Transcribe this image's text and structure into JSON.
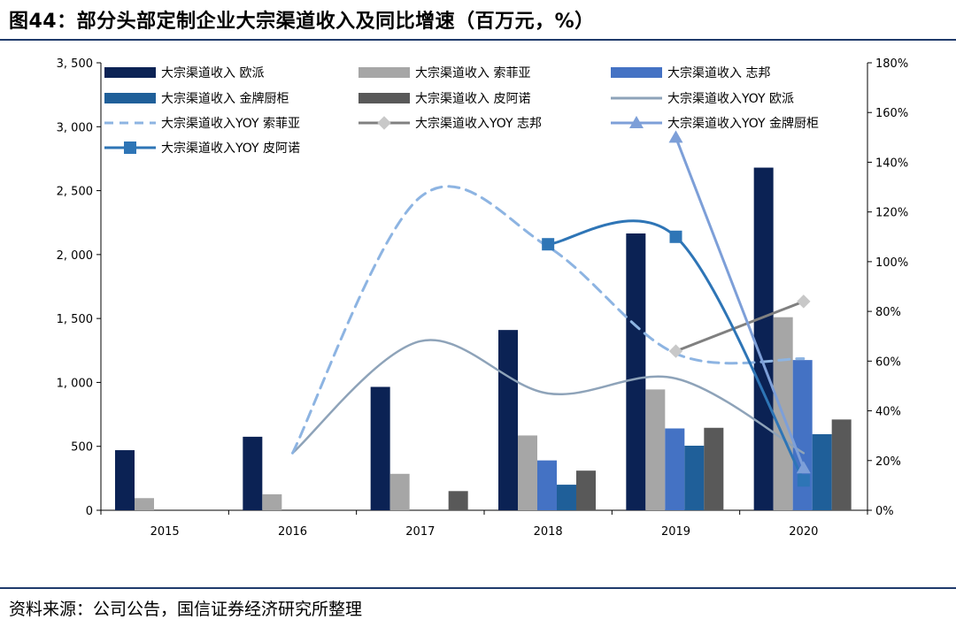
{
  "header": {
    "title": "图44：部分头部定制企业大宗渠道收入及同比增速（百万元，%）"
  },
  "footer": {
    "source": "资料来源：公司公告，国信证券经济研究所整理"
  },
  "colors": {
    "oppein_bar": "#0b2254",
    "sofia_bar": "#a6a6a6",
    "zbom_bar": "#4472c4",
    "goldenhome_bar": "#1f5f99",
    "piano_bar": "#595959",
    "oppein_yoy": "#8ea3b9",
    "sofia_yoy": "#8db4e2",
    "zbom_yoy": "#808080",
    "goldenhome_yoy": "#7d9fd8",
    "piano_yoy": "#2e75b6"
  },
  "chart_data": {
    "type": "bar",
    "title": "部分头部定制企业大宗渠道收入及同比增速（百万元，%）",
    "categories": [
      "2015",
      "2016",
      "2017",
      "2018",
      "2019",
      "2020"
    ],
    "ylim_left": [
      0,
      3500
    ],
    "yticks_left": [
      "0",
      "500",
      "1, 000",
      "1, 500",
      "2, 000",
      "2, 500",
      "3, 000",
      "3, 500"
    ],
    "ylim_right": [
      0,
      180
    ],
    "yticks_right": [
      "0%",
      "20%",
      "40%",
      "60%",
      "80%",
      "100%",
      "120%",
      "140%",
      "160%",
      "180%"
    ],
    "bar_series": [
      {
        "name": "大宗渠道收入 欧派",
        "values": [
          470,
          575,
          965,
          1410,
          2165,
          2680
        ]
      },
      {
        "name": "大宗渠道收入 索菲亚",
        "values": [
          95,
          125,
          285,
          585,
          945,
          1510
        ]
      },
      {
        "name": "大宗渠道收入 志邦",
        "values": [
          null,
          null,
          null,
          390,
          640,
          1175
        ]
      },
      {
        "name": "大宗渠道收入 金牌厨柜",
        "values": [
          null,
          null,
          null,
          200,
          505,
          595
        ]
      },
      {
        "name": "大宗渠道收入 皮阿诺",
        "values": [
          null,
          null,
          150,
          310,
          645,
          710
        ]
      }
    ],
    "line_series": [
      {
        "name": "大宗渠道收入YOY 欧派",
        "values": [
          null,
          23,
          68,
          47,
          53,
          23
        ]
      },
      {
        "name": "大宗渠道收入YOY 索菲亚",
        "values": [
          null,
          23,
          126,
          106,
          63,
          61
        ]
      },
      {
        "name": "大宗渠道收入YOY 志邦",
        "values": [
          null,
          null,
          null,
          null,
          64,
          84
        ]
      },
      {
        "name": "大宗渠道收入YOY 金牌厨柜",
        "values": [
          null,
          null,
          null,
          null,
          150,
          17
        ]
      },
      {
        "name": "大宗渠道收入YOY 皮阿诺",
        "values": [
          null,
          null,
          null,
          107,
          110,
          12
        ]
      }
    ],
    "legend": {
      "position": "top",
      "entries": [
        "大宗渠道收入 欧派",
        "大宗渠道收入 索菲亚",
        "大宗渠道收入 志邦",
        "大宗渠道收入 金牌厨柜",
        "大宗渠道收入 皮阿诺",
        "大宗渠道收入YOY 欧派",
        "大宗渠道收入YOY 索菲亚",
        "大宗渠道收入YOY 志邦",
        "大宗渠道收入YOY 金牌厨柜",
        "大宗渠道收入YOY 皮阿诺"
      ]
    }
  }
}
